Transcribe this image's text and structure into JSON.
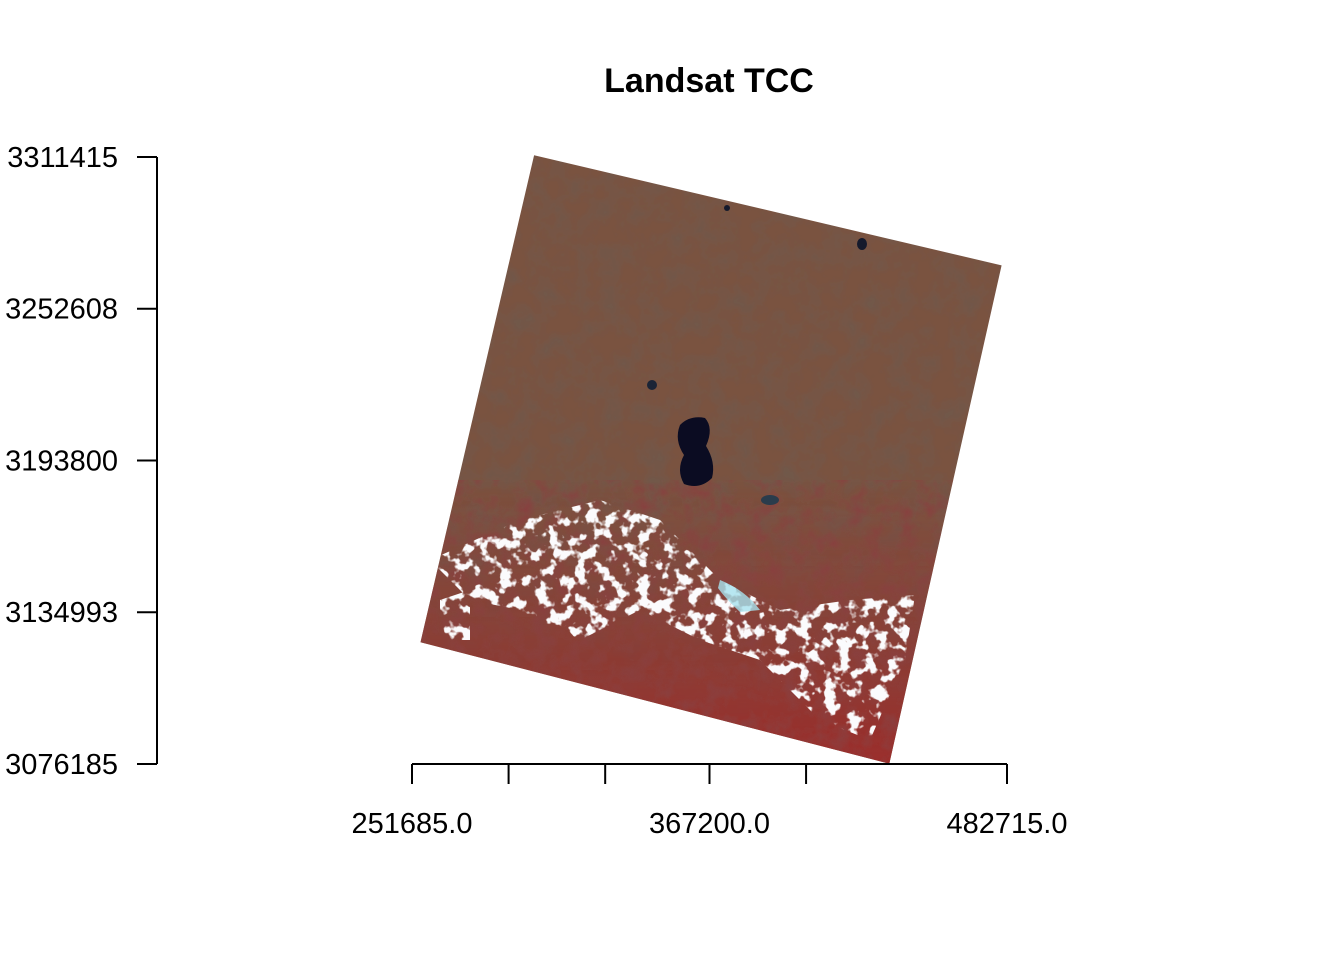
{
  "chart_data": {
    "type": "image",
    "title": "Landsat TCC",
    "xlabel": "",
    "ylabel": "",
    "x_ticks": [
      251685.0,
      289190.0,
      326695.0,
      367200.0,
      404700.0,
      482715.0
    ],
    "x_tick_labels": [
      {
        "value": 251685.0,
        "label": "251685.0"
      },
      {
        "value": 367200.0,
        "label": "367200.0"
      },
      {
        "value": 482715.0,
        "label": "482715.0"
      }
    ],
    "y_tick_labels": [
      {
        "value": 3311415,
        "label": "3311415"
      },
      {
        "value": 3252608,
        "label": "3252608"
      },
      {
        "value": 3193800,
        "label": "3193800"
      },
      {
        "value": 3134993,
        "label": "3134993"
      },
      {
        "value": 3076185,
        "label": "3076185"
      }
    ],
    "xlim": [
      251685.0,
      482715.0
    ],
    "ylim": [
      3076185,
      3311415
    ],
    "grid": false,
    "scene": {
      "corners": [
        {
          "x": 299100,
          "y": 3312100
        },
        {
          "x": 480600,
          "y": 3269400
        },
        {
          "x": 437000,
          "y": 3076300
        },
        {
          "x": 255000,
          "y": 3123400
        }
      ]
    },
    "colors": {
      "terrain_brown": "#7a5240",
      "terrain_dark": "#4a3024",
      "vegetation_red": "#9a2a2a",
      "snow": "#f4f6f8",
      "water": "#0b0c22",
      "ice": "#a8e2ee"
    }
  }
}
